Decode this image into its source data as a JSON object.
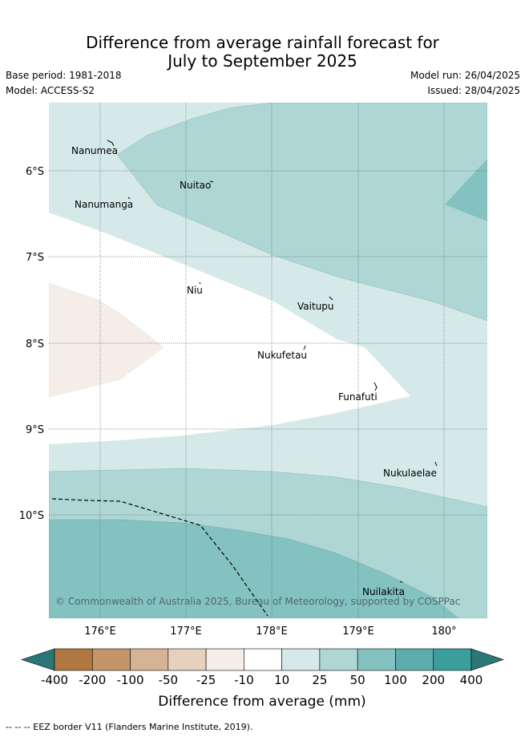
{
  "title": {
    "line1": "Difference from average rainfall forecast for",
    "line2": "July to September 2025"
  },
  "meta": {
    "base_period": "Base period: 1981-2018",
    "model": "Model: ACCESS-S2",
    "model_run": "Model run: 26/04/2025",
    "issued": "Issued: 28/04/2025"
  },
  "map": {
    "lat_labels": [
      "6°S",
      "7°S",
      "8°S",
      "9°S",
      "10°S"
    ],
    "lon_labels": [
      "176°E",
      "177°E",
      "178°E",
      "179°E",
      "180°"
    ],
    "islands": [
      {
        "name": "Nanumea"
      },
      {
        "name": "Nuitao"
      },
      {
        "name": "Nanumanga"
      },
      {
        "name": "Niu"
      },
      {
        "name": "Vaitupu"
      },
      {
        "name": "Nukufetau"
      },
      {
        "name": "Funafuti"
      },
      {
        "name": "Nukulaelae"
      },
      {
        "name": "Nuilakita"
      }
    ],
    "attribution": "© Commonwealth of Australia 2025, Bureau of Meteorology, supported by COSPPac"
  },
  "legend": {
    "labels": [
      "-400",
      "-200",
      "-100",
      "-50",
      "-25",
      "-10",
      "10",
      "25",
      "50",
      "100",
      "200",
      "400"
    ],
    "colors": [
      "#2b7677",
      "#b07840",
      "#c39568",
      "#d5b394",
      "#e6d0be",
      "#f5ede7",
      "#ffffff",
      "#d5e9e8",
      "#aed6d5",
      "#84c1c1",
      "#5eadad",
      "#399e9c",
      "#2b7677"
    ],
    "title": "Difference from average (mm)"
  },
  "footer": {
    "eez_note": "-- -- -- EEZ border V11 (Flanders Marine Institute, 2019)."
  }
}
